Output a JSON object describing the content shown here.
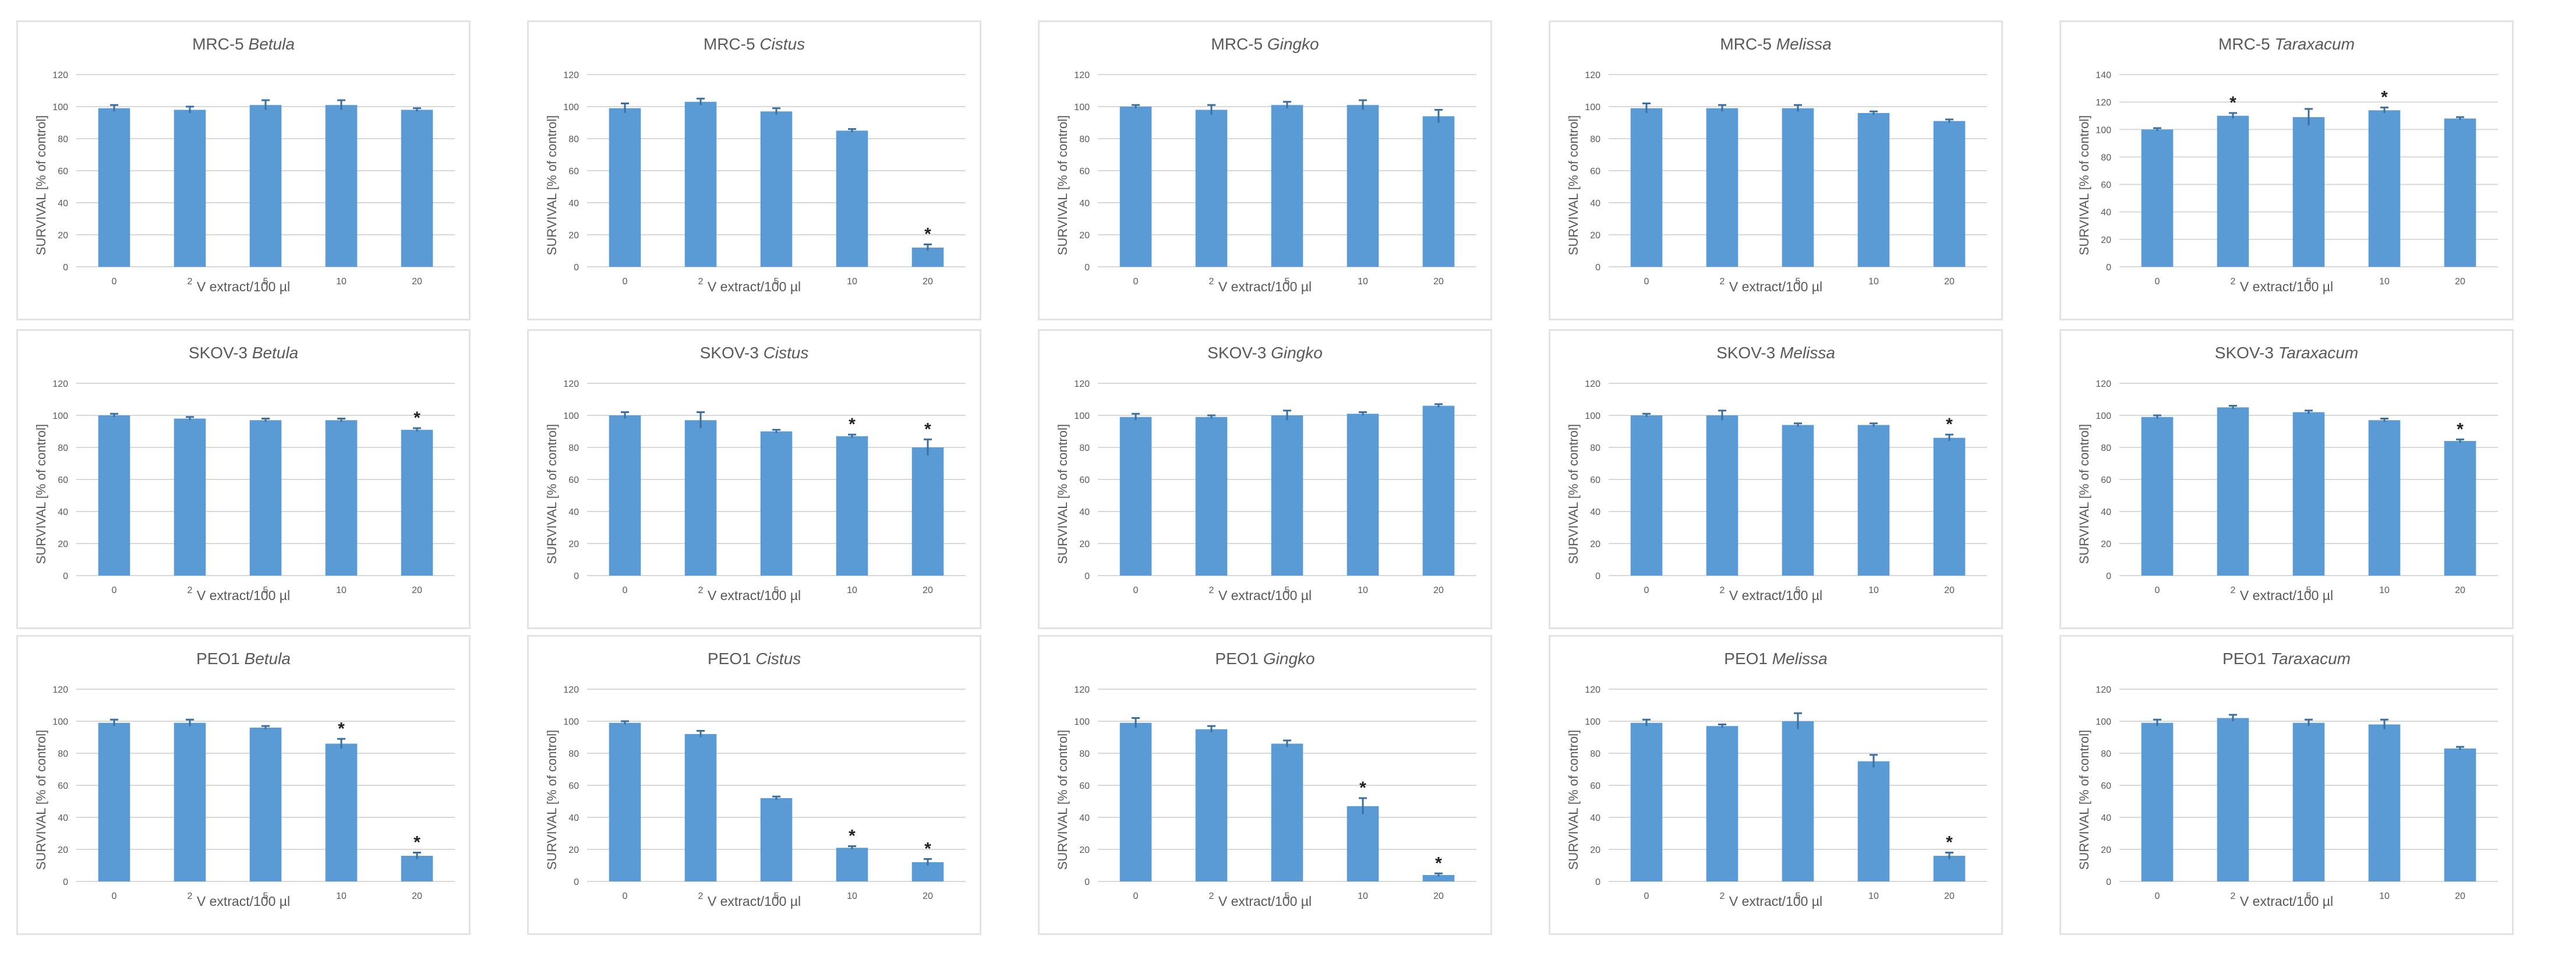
{
  "chart_data": [
    {
      "type": "bar",
      "title": "MRC-5",
      "species": "Betula",
      "ylabel": "SURVIVAL [% of control]",
      "xlabel": "V extract/100 µl",
      "categories": [
        "0",
        "2",
        "5",
        "10",
        "20"
      ],
      "values": [
        99,
        98,
        101,
        101,
        98
      ],
      "errors": [
        2,
        2,
        3,
        3,
        1
      ],
      "significant": [
        false,
        false,
        false,
        false,
        false
      ],
      "ylim": [
        0,
        120
      ],
      "yticks": [
        "0",
        "20",
        "40",
        "60",
        "80",
        "100",
        "120"
      ]
    },
    {
      "type": "bar",
      "title": "MRC-5",
      "species": "Cistus",
      "ylabel": "SURVIVAL [% of control]",
      "xlabel": "V extract/100 µl",
      "categories": [
        "0",
        "2",
        "5",
        "10",
        "20"
      ],
      "values": [
        99,
        103,
        97,
        85,
        12
      ],
      "errors": [
        3,
        2,
        2,
        1,
        2
      ],
      "significant": [
        false,
        false,
        false,
        false,
        true
      ],
      "ylim": [
        0,
        120
      ],
      "yticks": [
        "0",
        "20",
        "40",
        "60",
        "80",
        "100",
        "120"
      ]
    },
    {
      "type": "bar",
      "title": "MRC-5",
      "species": "Gingko",
      "ylabel": "SURVIVAL [% of control]",
      "xlabel": "V extract/100 µl",
      "categories": [
        "0",
        "2",
        "5",
        "10",
        "20"
      ],
      "values": [
        100,
        98,
        101,
        101,
        94
      ],
      "errors": [
        1,
        3,
        2,
        3,
        4
      ],
      "significant": [
        false,
        false,
        false,
        false,
        false
      ],
      "ylim": [
        0,
        120
      ],
      "yticks": [
        "0",
        "20",
        "40",
        "60",
        "80",
        "100",
        "120"
      ]
    },
    {
      "type": "bar",
      "title": "MRC-5",
      "species": "Melissa",
      "ylabel": "SURVIVAL [% of control]",
      "xlabel": "V extract/100 µl",
      "categories": [
        "0",
        "2",
        "5",
        "10",
        "20"
      ],
      "values": [
        99,
        99,
        99,
        96,
        91
      ],
      "errors": [
        3,
        2,
        2,
        1,
        1
      ],
      "significant": [
        false,
        false,
        false,
        false,
        false
      ],
      "ylim": [
        0,
        120
      ],
      "yticks": [
        "0",
        "20",
        "40",
        "60",
        "80",
        "100",
        "120"
      ]
    },
    {
      "type": "bar",
      "title": "MRC-5",
      "species": "Taraxacum",
      "ylabel": "SURVIVAL [% of control]",
      "xlabel": "V extract/100 µl",
      "categories": [
        "0",
        "2",
        "5",
        "10",
        "20"
      ],
      "values": [
        100,
        110,
        109,
        114,
        108
      ],
      "errors": [
        1,
        2,
        6,
        2,
        1
      ],
      "significant": [
        false,
        true,
        false,
        true,
        false
      ],
      "ylim": [
        0,
        140
      ],
      "yticks": [
        "0",
        "20",
        "40",
        "60",
        "80",
        "100",
        "120",
        "140"
      ]
    },
    {
      "type": "bar",
      "title": "SKOV-3",
      "species": "Betula",
      "ylabel": "SURVIVAL [% of control]",
      "xlabel": "V extract/100 µl",
      "categories": [
        "0",
        "2",
        "5",
        "10",
        "20"
      ],
      "values": [
        100,
        98,
        97,
        97,
        91
      ],
      "errors": [
        1,
        1,
        1,
        1,
        1
      ],
      "significant": [
        false,
        false,
        false,
        false,
        true
      ],
      "ylim": [
        0,
        120
      ],
      "yticks": [
        "0",
        "20",
        "40",
        "60",
        "80",
        "100",
        "120"
      ]
    },
    {
      "type": "bar",
      "title": "SKOV-3",
      "species": "Cistus",
      "ylabel": "SURVIVAL [% of control]",
      "xlabel": "V extract/100 µl",
      "categories": [
        "0",
        "2",
        "5",
        "10",
        "20"
      ],
      "values": [
        100,
        97,
        90,
        87,
        80
      ],
      "errors": [
        2,
        5,
        1,
        1,
        5
      ],
      "significant": [
        false,
        false,
        false,
        true,
        true
      ],
      "ylim": [
        0,
        120
      ],
      "yticks": [
        "0",
        "20",
        "40",
        "60",
        "80",
        "100",
        "120"
      ]
    },
    {
      "type": "bar",
      "title": "SKOV-3",
      "species": "Gingko",
      "ylabel": "SURVIVAL [% of control]",
      "xlabel": "V extract/100 µl",
      "categories": [
        "0",
        "2",
        "5",
        "10",
        "20"
      ],
      "values": [
        99,
        99,
        100,
        101,
        106
      ],
      "errors": [
        2,
        1,
        3,
        1,
        1
      ],
      "significant": [
        false,
        false,
        false,
        false,
        false
      ],
      "ylim": [
        0,
        120
      ],
      "yticks": [
        "0",
        "20",
        "40",
        "60",
        "80",
        "100",
        "120"
      ]
    },
    {
      "type": "bar",
      "title": "SKOV-3",
      "species": "Melissa",
      "ylabel": "SURVIVAL [% of control]",
      "xlabel": "V extract/100 µl",
      "categories": [
        "0",
        "2",
        "5",
        "10",
        "20"
      ],
      "values": [
        100,
        100,
        94,
        94,
        86
      ],
      "errors": [
        1,
        3,
        1,
        1,
        2
      ],
      "significant": [
        false,
        false,
        false,
        false,
        true
      ],
      "ylim": [
        0,
        120
      ],
      "yticks": [
        "0",
        "20",
        "40",
        "60",
        "80",
        "100",
        "120"
      ]
    },
    {
      "type": "bar",
      "title": "SKOV-3",
      "species": "Taraxacum",
      "ylabel": "SURVIVAL [% of control]",
      "xlabel": "V extract/100 µl",
      "categories": [
        "0",
        "2",
        "5",
        "10",
        "20"
      ],
      "values": [
        99,
        105,
        102,
        97,
        84
      ],
      "errors": [
        1,
        1,
        1,
        1,
        1
      ],
      "significant": [
        false,
        false,
        false,
        false,
        true
      ],
      "ylim": [
        0,
        120
      ],
      "yticks": [
        "0",
        "20",
        "40",
        "60",
        "80",
        "100",
        "120"
      ]
    },
    {
      "type": "bar",
      "title": "PEO1",
      "species": "Betula",
      "ylabel": "SURVIVAL [% of control]",
      "xlabel": "V extract/100 µl",
      "categories": [
        "0",
        "2",
        "5",
        "10",
        "20"
      ],
      "values": [
        99,
        99,
        96,
        86,
        16
      ],
      "errors": [
        2,
        2,
        1,
        3,
        2
      ],
      "significant": [
        false,
        false,
        false,
        true,
        true
      ],
      "ylim": [
        0,
        120
      ],
      "yticks": [
        "0",
        "20",
        "40",
        "60",
        "80",
        "100",
        "120"
      ]
    },
    {
      "type": "bar",
      "title": "PEO1",
      "species": "Cistus",
      "ylabel": "SURVIVAL [% of control]",
      "xlabel": "V extract/100 µl",
      "categories": [
        "0",
        "2",
        "5",
        "10",
        "20"
      ],
      "values": [
        99,
        92,
        52,
        21,
        12
      ],
      "errors": [
        1,
        2,
        1,
        1,
        2
      ],
      "significant": [
        false,
        false,
        false,
        true,
        true
      ],
      "ylim": [
        0,
        120
      ],
      "yticks": [
        "0",
        "20",
        "40",
        "60",
        "80",
        "100",
        "120"
      ]
    },
    {
      "type": "bar",
      "title": "PEO1",
      "species": "Gingko",
      "ylabel": "SURVIVAL [% of control]",
      "xlabel": "V extract/100 µl",
      "categories": [
        "0",
        "2",
        "5",
        "10",
        "20"
      ],
      "values": [
        99,
        95,
        86,
        47,
        4
      ],
      "errors": [
        3,
        2,
        2,
        5,
        1
      ],
      "significant": [
        false,
        false,
        false,
        true,
        true
      ],
      "ylim": [
        0,
        120
      ],
      "yticks": [
        "0",
        "20",
        "40",
        "60",
        "80",
        "100",
        "120"
      ]
    },
    {
      "type": "bar",
      "title": "PEO1",
      "species": "Melissa",
      "ylabel": "SURVIVAL [% of control]",
      "xlabel": "V extract/100 µl",
      "categories": [
        "0",
        "2",
        "5",
        "10",
        "20"
      ],
      "values": [
        99,
        97,
        100,
        75,
        16
      ],
      "errors": [
        2,
        1,
        5,
        4,
        2
      ],
      "significant": [
        false,
        false,
        false,
        false,
        true
      ],
      "ylim": [
        0,
        120
      ],
      "yticks": [
        "0",
        "20",
        "40",
        "60",
        "80",
        "100",
        "120"
      ]
    },
    {
      "type": "bar",
      "title": "PEO1",
      "species": "Taraxacum",
      "ylabel": "SURVIVAL [% of control]",
      "xlabel": "V extract/100 µl",
      "categories": [
        "0",
        "2",
        "5",
        "10",
        "20"
      ],
      "values": [
        99,
        102,
        99,
        98,
        83
      ],
      "errors": [
        2,
        2,
        2,
        3,
        1
      ],
      "significant": [
        false,
        false,
        false,
        false,
        false
      ],
      "ylim": [
        0,
        120
      ],
      "yticks": [
        "0",
        "20",
        "40",
        "60",
        "80",
        "100",
        "120"
      ]
    }
  ],
  "style": {
    "bar_color": "#5b9bd5",
    "grid_color": "#d9d9d9",
    "text_color": "#595959",
    "marker": "*"
  }
}
